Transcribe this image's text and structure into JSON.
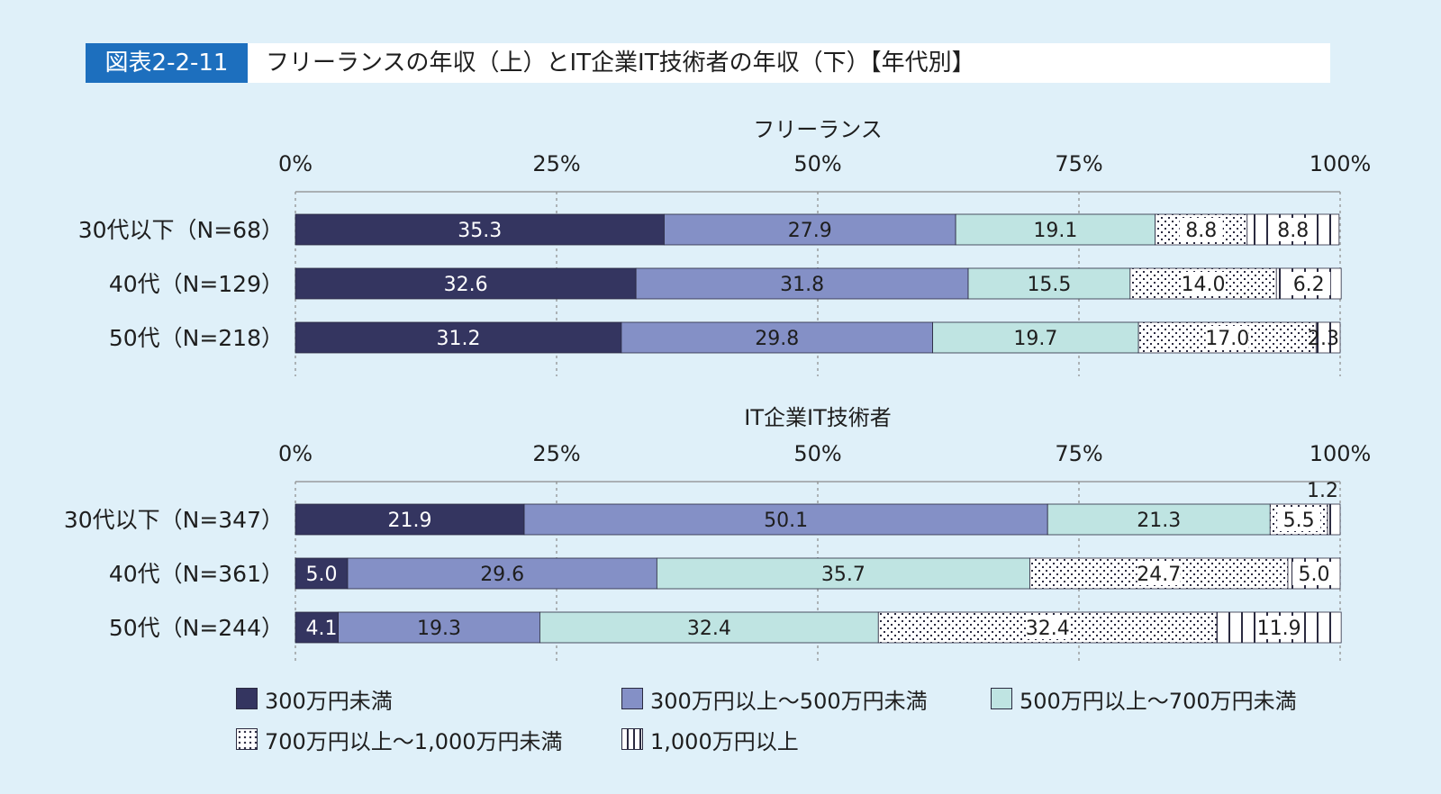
{
  "header": {
    "tag": "図表2-2-11",
    "title": "フリーランスの年収（上）とIT企業IT技術者の年収（下）【年代別】"
  },
  "colors": {
    "background": "#dff0f9",
    "header_tag": "#1d6fbe",
    "under_300": "#343560",
    "from_300_to_500": "#8490c6",
    "from_500_to_700": "#bfe4e2",
    "from_700_to_1000": "dots",
    "over_1000": "vertical-lines"
  },
  "chart_data": [
    {
      "type": "bar",
      "orientation": "horizontal-stacked-percent",
      "title": "フリーランス",
      "xlim": [
        0,
        100
      ],
      "x_ticks": [
        "0%",
        "25%",
        "50%",
        "75%",
        "100%"
      ],
      "categories": [
        "30代以下（N=68）",
        "40代（N=129）",
        "50代（N=218）"
      ],
      "series": [
        {
          "name": "300万円未満",
          "values": [
            35.3,
            32.6,
            31.2
          ]
        },
        {
          "name": "300万円以上～500万円未満",
          "values": [
            27.9,
            31.8,
            29.8
          ]
        },
        {
          "name": "500万円以上～700万円未満",
          "values": [
            19.1,
            15.5,
            19.7
          ]
        },
        {
          "name": "700万円以上～1,000万円未満",
          "values": [
            8.8,
            14.0,
            17.0
          ]
        },
        {
          "name": "1,000万円以上",
          "values": [
            8.8,
            6.2,
            2.3
          ]
        }
      ]
    },
    {
      "type": "bar",
      "orientation": "horizontal-stacked-percent",
      "title": "IT企業IT技術者",
      "xlim": [
        0,
        100
      ],
      "x_ticks": [
        "0%",
        "25%",
        "50%",
        "75%",
        "100%"
      ],
      "categories": [
        "30代以下（N=347）",
        "40代（N=361）",
        "50代（N=244）"
      ],
      "series": [
        {
          "name": "300万円未満",
          "values": [
            21.9,
            5.0,
            4.1
          ]
        },
        {
          "name": "300万円以上～500万円未満",
          "values": [
            50.1,
            29.6,
            19.3
          ]
        },
        {
          "name": "500万円以上～700万円未満",
          "values": [
            21.3,
            35.7,
            32.4
          ]
        },
        {
          "name": "700万円以上～1,000万円未満",
          "values": [
            5.5,
            24.7,
            32.4
          ]
        },
        {
          "name": "1,000万円以上",
          "values": [
            1.2,
            5.0,
            11.9
          ]
        }
      ]
    }
  ],
  "legend": [
    {
      "label": "300万円未満",
      "fill": "solid-dark"
    },
    {
      "label": "300万円以上～500万円未満",
      "fill": "solid-blue"
    },
    {
      "label": "500万円以上～700万円未満",
      "fill": "solid-teal"
    },
    {
      "label": "700万円以上～1,000万円未満",
      "fill": "dots"
    },
    {
      "label": "1,000万円以上",
      "fill": "vertical-lines"
    }
  ]
}
